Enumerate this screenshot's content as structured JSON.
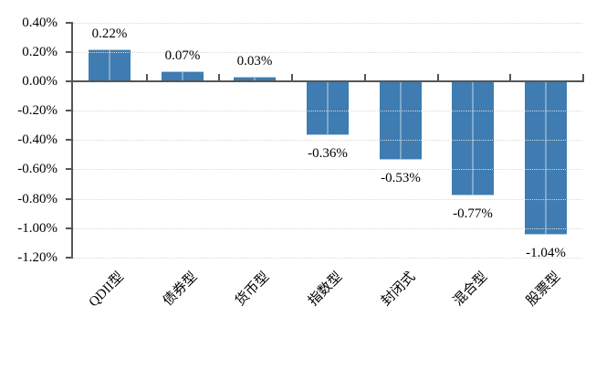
{
  "chart_data": {
    "type": "bar",
    "title": "",
    "xlabel": "",
    "ylabel": "",
    "categories": [
      "QDII型",
      "债券型",
      "货币型",
      "指数型",
      "封闭式",
      "混合型",
      "股票型"
    ],
    "values": [
      0.22,
      0.07,
      0.03,
      -0.36,
      -0.53,
      -0.77,
      -1.04
    ],
    "data_labels": [
      "0.22%",
      "0.07%",
      "0.03%",
      "-0.36%",
      "-0.53%",
      "-0.77%",
      "-1.04%"
    ],
    "unit": "%",
    "ylim": [
      -1.2,
      0.4
    ],
    "ytick_step": 0.2,
    "ytick_labels": [
      "0.40%",
      "0.20%",
      "0.00%",
      "-0.20%",
      "-0.40%",
      "-0.60%",
      "-0.80%",
      "-1.00%",
      "-1.20%"
    ],
    "grid": "horizontal-dotted",
    "legend": "none",
    "colors": {
      "bar_fill": "#3E7CB1",
      "bar_center_stripe": "#7FA8CB",
      "bar_end_edge": "#AECBDF",
      "axis": "#555555",
      "gridline": "#D9D9D9",
      "text": "#000000",
      "background": "#FFFFFF"
    }
  }
}
